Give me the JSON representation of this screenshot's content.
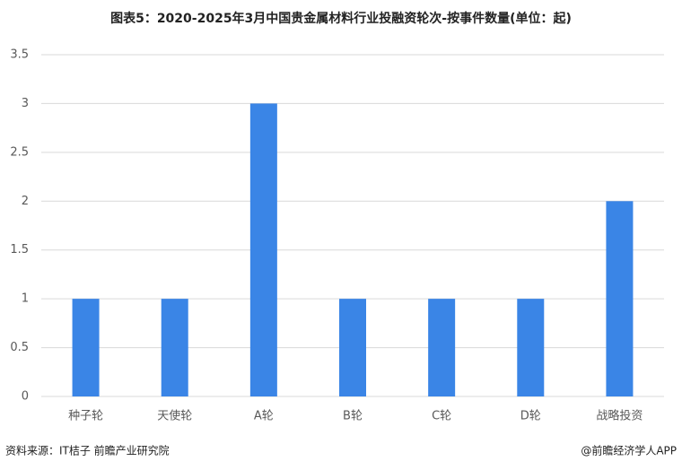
{
  "chart_data": {
    "type": "bar",
    "title": "图表5：2020-2025年3月中国贵金属材料行业投融资轮次-按事件数量(单位：起)",
    "categories": [
      "种子轮",
      "天使轮",
      "A轮",
      "B轮",
      "C轮",
      "D轮",
      "战略投资"
    ],
    "values": [
      1,
      1,
      3,
      1,
      1,
      1,
      2
    ],
    "color": "#3a85e6",
    "ylim": [
      0,
      3.5
    ],
    "yticks": [
      0,
      0.5,
      1,
      1.5,
      2,
      2.5,
      3,
      3.5
    ],
    "grid": true,
    "source": "资料来源：IT桔子 前瞻产业研究院",
    "credit": "@前瞻经济学人APP"
  }
}
